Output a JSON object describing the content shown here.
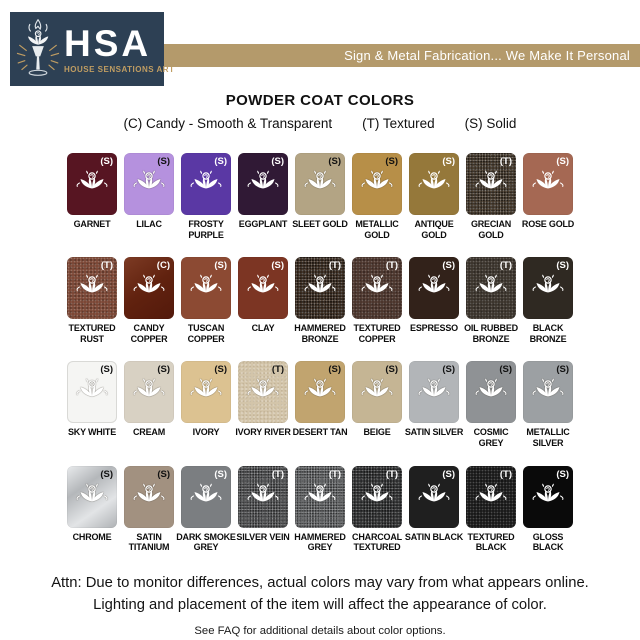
{
  "logo": {
    "acronym": "HSA",
    "subtitle": "HOUSE SENSATIONS ART"
  },
  "banner": {
    "text": "Sign & Metal Fabrication... We Make It Personal"
  },
  "title": "POWDER COAT COLORS",
  "legend": {
    "candy": "(C) Candy - Smooth & Transparent",
    "textured": "(T) Textured",
    "solid": "(S) Solid"
  },
  "colors": {
    "logo_bg": "#2d4054",
    "banner_bg": "#b49a6b",
    "accent_gold": "#c09d62"
  },
  "swatches": [
    {
      "name": "GARNET",
      "type": "S",
      "color": "#571522",
      "text": "light",
      "texture": "none"
    },
    {
      "name": "LILAC",
      "type": "S",
      "color": "#b591de",
      "text": "dark",
      "texture": "none"
    },
    {
      "name": "FROSTY PURPLE",
      "type": "S",
      "color": "#5a38a4",
      "text": "light",
      "texture": "none"
    },
    {
      "name": "EGGPLANT",
      "type": "S",
      "color": "#301935",
      "text": "light",
      "texture": "none"
    },
    {
      "name": "SLEET GOLD",
      "type": "S",
      "color": "#b3a484",
      "text": "dark",
      "texture": "none"
    },
    {
      "name": "METALLIC GOLD",
      "type": "S",
      "color": "#b78f48",
      "text": "dark",
      "texture": "none"
    },
    {
      "name": "ANTIQUE GOLD",
      "type": "S",
      "color": "#95783a",
      "text": "light",
      "texture": "none"
    },
    {
      "name": "GRECIAN GOLD",
      "type": "T",
      "color": "#46392a",
      "text": "light",
      "texture": "coarse"
    },
    {
      "name": "ROSE GOLD",
      "type": "S",
      "color": "#a56853",
      "text": "light",
      "texture": "none"
    },
    {
      "name": "TEXTURED RUST",
      "type": "T",
      "color": "#7b4836",
      "text": "light",
      "texture": "fine"
    },
    {
      "name": "CANDY COPPER",
      "type": "C",
      "color": "#6e2a15",
      "text": "light",
      "texture": "none",
      "gradient": [
        "#7d3b24",
        "#61220f",
        "#53190b"
      ]
    },
    {
      "name": "TUSCAN COPPER",
      "type": "S",
      "color": "#8c4a33",
      "text": "light",
      "texture": "none"
    },
    {
      "name": "CLAY",
      "type": "S",
      "color": "#7c3523",
      "text": "light",
      "texture": "none"
    },
    {
      "name": "HAMMERED BRONZE",
      "type": "T",
      "color": "#39291c",
      "text": "light",
      "texture": "coarse"
    },
    {
      "name": "TEXTURED COPPER",
      "type": "T",
      "color": "#4b352c",
      "text": "light",
      "texture": "fine"
    },
    {
      "name": "ESPRESSO",
      "type": "S",
      "color": "#32221a",
      "text": "light",
      "texture": "none"
    },
    {
      "name": "OIL RUBBED BRONZE",
      "type": "T",
      "color": "#3b342c",
      "text": "light",
      "texture": "fine"
    },
    {
      "name": "BLACK BRONZE",
      "type": "S",
      "color": "#2f2922",
      "text": "light",
      "texture": "none"
    },
    {
      "name": "SKY WHITE",
      "type": "S",
      "color": "#f5f5f3",
      "text": "dark",
      "texture": "none",
      "border": true
    },
    {
      "name": "CREAM",
      "type": "S",
      "color": "#d8d1c3",
      "text": "dark",
      "texture": "none"
    },
    {
      "name": "IVORY",
      "type": "S",
      "color": "#dcc291",
      "text": "dark",
      "texture": "none"
    },
    {
      "name": "IVORY RIVER",
      "type": "T",
      "color": "#d3c5aa",
      "text": "dark",
      "texture": "soft"
    },
    {
      "name": "DESERT TAN",
      "type": "S",
      "color": "#c1a46f",
      "text": "dark",
      "texture": "none"
    },
    {
      "name": "BEIGE",
      "type": "S",
      "color": "#c5b594",
      "text": "dark",
      "texture": "none"
    },
    {
      "name": "SATIN SILVER",
      "type": "S",
      "color": "#b2b5b8",
      "text": "dark",
      "texture": "none"
    },
    {
      "name": "COSMIC GREY",
      "type": "S",
      "color": "#8f9295",
      "text": "dark",
      "texture": "none"
    },
    {
      "name": "METALLIC SILVER",
      "type": "S",
      "color": "#9ca0a3",
      "text": "dark",
      "texture": "none"
    },
    {
      "name": "CHROME",
      "type": "S",
      "color": "#c9cbcd",
      "text": "dark",
      "texture": "none",
      "gradient": [
        "#e9ebed",
        "#b4b7ba",
        "#e2e4e6",
        "#aeb1b4"
      ]
    },
    {
      "name": "SATIN TITANIUM",
      "type": "S",
      "color": "#a29180",
      "text": "dark",
      "texture": "none"
    },
    {
      "name": "DARK SMOKE GREY",
      "type": "S",
      "color": "#7b7e81",
      "text": "light",
      "texture": "none"
    },
    {
      "name": "SILVER VEIN",
      "type": "T",
      "color": "#57585a",
      "text": "light",
      "texture": "coarse"
    },
    {
      "name": "HAMMERED GREY",
      "type": "T",
      "color": "#6a6c6e",
      "text": "light",
      "texture": "coarse"
    },
    {
      "name": "CHARCOAL TEXTURED",
      "type": "T",
      "color": "#2f3031",
      "text": "light",
      "texture": "coarse"
    },
    {
      "name": "SATIN BLACK",
      "type": "S",
      "color": "#1f1f1f",
      "text": "light",
      "texture": "none"
    },
    {
      "name": "TEXTURED BLACK",
      "type": "T",
      "color": "#1a1a1a",
      "text": "light",
      "texture": "fine"
    },
    {
      "name": "GLOSS BLACK",
      "type": "S",
      "color": "#0a0a0a",
      "text": "light",
      "texture": "none"
    }
  ],
  "footer": {
    "attn_line1": "Attn: Due to monitor differences, actual colors may vary from what appears online.",
    "attn_line2": "Lighting and placement of the item will affect the appearance of color.",
    "faq": "See FAQ for additional details about color options."
  }
}
